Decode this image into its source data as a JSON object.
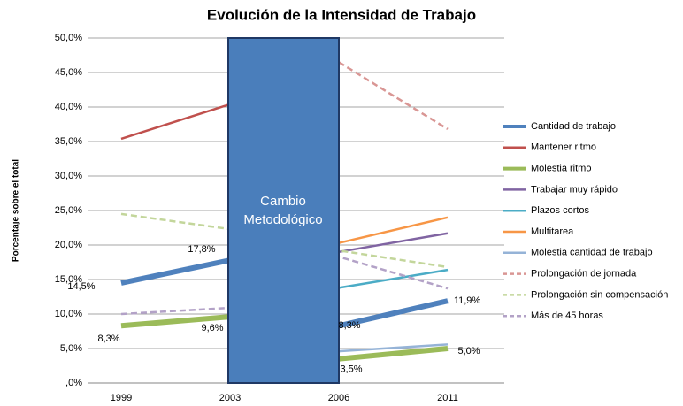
{
  "chart_data": {
    "type": "line",
    "title": "Evolución de la Intensidad de Trabajo",
    "y_label": "Porcentaje sobre el total",
    "annotation": [
      "Cambio",
      "Metodológico"
    ],
    "categories": [
      "1999",
      "2003",
      "2006",
      "2011"
    ],
    "ylim": [
      0,
      50
    ],
    "yticks": [
      {
        "value": 0,
        "label": ",0%"
      },
      {
        "value": 5,
        "label": "5,0%"
      },
      {
        "value": 10,
        "label": "10,0%"
      },
      {
        "value": 15,
        "label": "15,0%"
      },
      {
        "value": 20,
        "label": "20,0%"
      },
      {
        "value": 25,
        "label": "25,0%"
      },
      {
        "value": 30,
        "label": "30,0%"
      },
      {
        "value": 35,
        "label": "35,0%"
      },
      {
        "value": 40,
        "label": "40,0%"
      },
      {
        "value": 45,
        "label": "45,0%"
      },
      {
        "value": 50,
        "label": "50,0%"
      }
    ],
    "grid": true,
    "legend": "right",
    "series": [
      {
        "name": "Cantidad de trabajo",
        "color": "#4f81bd",
        "width": 6,
        "dashed": false,
        "values": [
          14.5,
          17.8,
          8.3,
          11.9
        ],
        "value_labels": [
          "14,5%",
          "17,8%",
          "8,3%",
          "11,9%"
        ]
      },
      {
        "name": "Mantener ritmo",
        "color": "#c0504d",
        "width": 2.5,
        "dashed": false,
        "values": [
          35.4,
          40.4,
          null,
          null
        ]
      },
      {
        "name": "Molestia ritmo",
        "color": "#9bbb59",
        "width": 6,
        "dashed": false,
        "values": [
          8.3,
          9.6,
          3.5,
          5.0
        ],
        "value_labels": [
          "8,3%",
          "9,6%",
          "3,5%",
          "5,0%"
        ]
      },
      {
        "name": "Trabajar muy rápido",
        "color": "#8064a2",
        "width": 2.5,
        "dashed": false,
        "values": [
          null,
          null,
          19.0,
          21.7
        ]
      },
      {
        "name": "Plazos cortos",
        "color": "#4bacc6",
        "width": 2.5,
        "dashed": false,
        "values": [
          null,
          null,
          13.8,
          16.4
        ]
      },
      {
        "name": "Multitarea",
        "color": "#f79646",
        "width": 2.5,
        "dashed": false,
        "values": [
          null,
          null,
          20.3,
          24.0
        ]
      },
      {
        "name": "Molestia cantidad de trabajo",
        "color": "#95b3d7",
        "width": 2.5,
        "dashed": false,
        "values": [
          null,
          null,
          4.6,
          5.6
        ]
      },
      {
        "name": "Prolongación de jornada",
        "color": "#d99694",
        "width": 2.5,
        "dashed": true,
        "values": [
          null,
          null,
          46.5,
          36.8
        ]
      },
      {
        "name": "Prolongación sin compensación",
        "color": "#c3d69b",
        "width": 2.5,
        "dashed": true,
        "values": [
          24.5,
          22.3,
          19.2,
          16.8
        ]
      },
      {
        "name": "Más de 45 horas",
        "color": "#b3a2c7",
        "width": 2.5,
        "dashed": true,
        "values": [
          10.0,
          10.9,
          18.3,
          13.7
        ]
      }
    ]
  }
}
